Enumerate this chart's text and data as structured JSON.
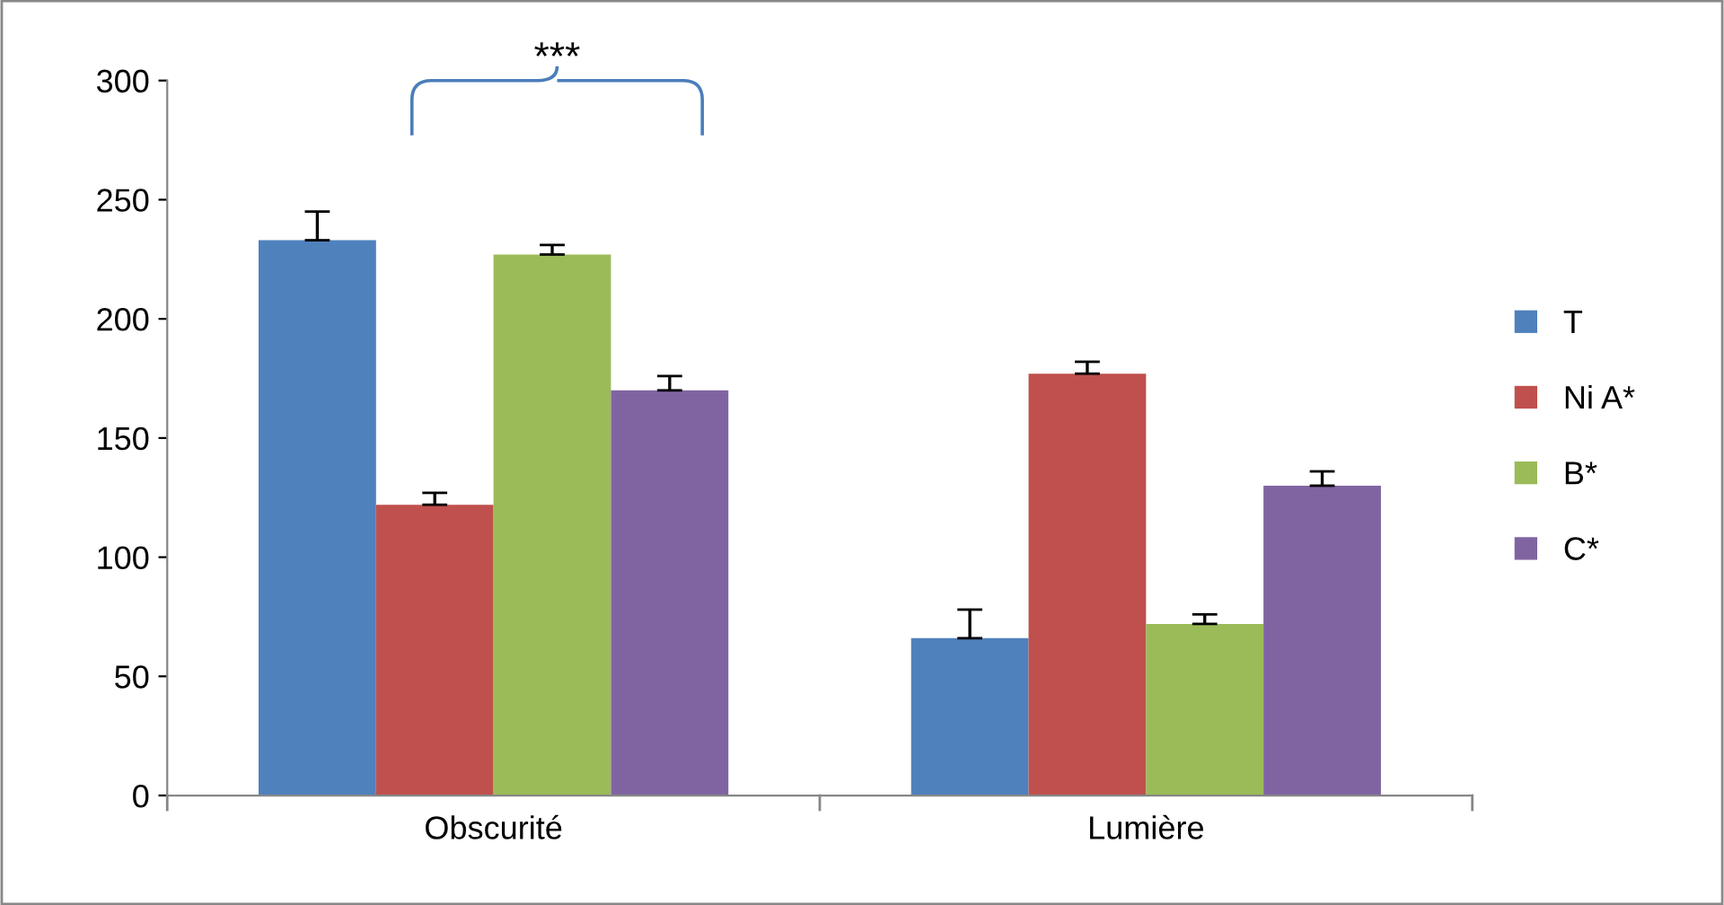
{
  "chart_data": {
    "type": "bar",
    "categories": [
      "Obscurité",
      "Lumière"
    ],
    "series": [
      {
        "name": "T",
        "color": "#4f81bd",
        "values": [
          233,
          66
        ],
        "errors": [
          [
            233,
            245
          ],
          [
            66,
            78
          ]
        ]
      },
      {
        "name": "Ni A*",
        "color": "#c0504d",
        "values": [
          122,
          177
        ],
        "errors": [
          [
            122,
            127
          ],
          [
            177,
            182
          ]
        ]
      },
      {
        "name": "B*",
        "color": "#9bbb59",
        "values": [
          227,
          72
        ],
        "errors": [
          [
            227,
            231
          ],
          [
            72,
            76
          ]
        ]
      },
      {
        "name": "C*",
        "color": "#8064a2",
        "values": [
          170,
          130
        ],
        "errors": [
          [
            170,
            176
          ],
          [
            130,
            136
          ]
        ]
      }
    ],
    "ylim": [
      0,
      300
    ],
    "yticks": [
      0,
      50,
      100,
      150,
      200,
      250,
      300
    ],
    "grid": false,
    "legend": "right",
    "annotations": [
      "***"
    ]
  }
}
